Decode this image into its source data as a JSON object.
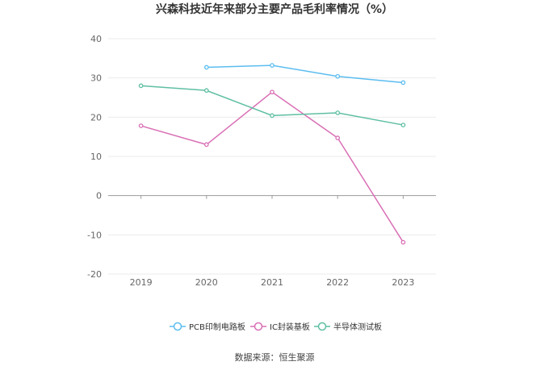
{
  "chart_data": {
    "type": "line",
    "title": "兴森科技近年来部分主要产品毛利率情况（%）",
    "categories": [
      "2019",
      "2020",
      "2021",
      "2022",
      "2023"
    ],
    "ylim": [
      -20,
      40
    ],
    "yticks": [
      40,
      30,
      20,
      10,
      0,
      -10,
      -20
    ],
    "grid": true,
    "legend_position": "bottom",
    "series": [
      {
        "name": "PCB印制电路板",
        "color": "#5bbdf0",
        "values": [
          null,
          32.7,
          33.2,
          30.4,
          28.8
        ]
      },
      {
        "name": "IC封装基板",
        "color": "#d96fb5",
        "values": [
          17.8,
          13.0,
          26.4,
          14.7,
          -11.9
        ]
      },
      {
        "name": "半导体测试板",
        "color": "#5fbfa3",
        "values": [
          28.0,
          26.8,
          20.4,
          21.1,
          18.0
        ]
      }
    ]
  },
  "footer": {
    "source": "数据来源：恒生聚源"
  }
}
